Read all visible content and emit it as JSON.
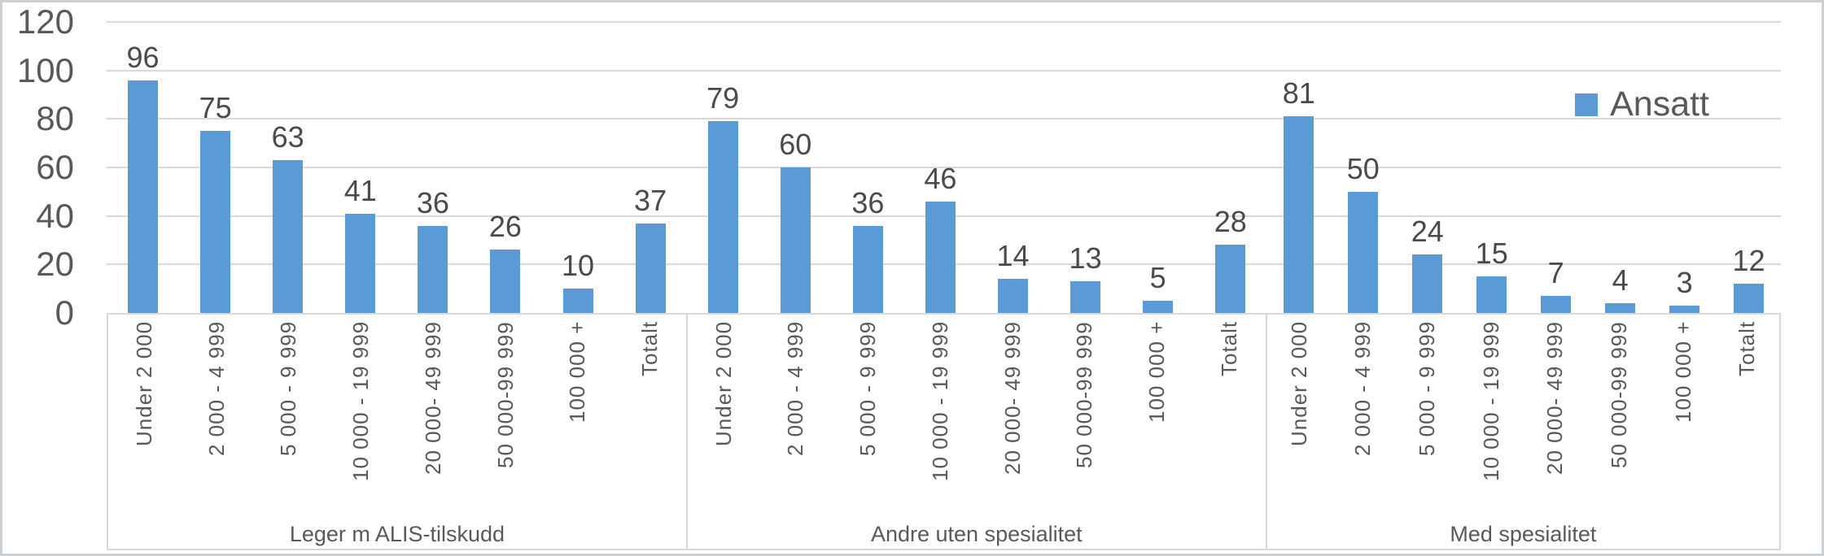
{
  "chart_data": {
    "type": "bar",
    "title": "",
    "series_name": "Ansatt",
    "legend_label": "Ansatt",
    "legend_position": "top-right inside plot",
    "bar_color": "#5B9BD5",
    "grid": true,
    "ylim": [
      0,
      120
    ],
    "yticks": [
      0,
      20,
      40,
      60,
      80,
      100,
      120
    ],
    "categories": [
      "Under 2 000",
      "2 000 - 4 999",
      "5 000 - 9 999",
      "10 000 - 19 999",
      "20 000- 49 999",
      "50 000-99 999",
      "100 000 +",
      "Totalt"
    ],
    "groups": [
      {
        "label": "Leger m ALIS-tilskudd",
        "values": [
          96,
          75,
          63,
          41,
          36,
          26,
          10,
          37
        ]
      },
      {
        "label": "Andre uten spesialitet",
        "values": [
          79,
          60,
          36,
          46,
          14,
          13,
          5,
          28
        ]
      },
      {
        "label": "Med spesialitet",
        "values": [
          81,
          50,
          24,
          15,
          7,
          4,
          3,
          12
        ]
      }
    ]
  },
  "colors": {
    "bar": "#5B9BD5",
    "gridline": "#D9D9D9",
    "axis_box_border": "#D9D9D9",
    "tick_text": "#595959",
    "data_label_text": "#4A4A4A",
    "category_text": "#595959",
    "frame_border": "#CCD0D4",
    "background": "#FFFFFF"
  }
}
